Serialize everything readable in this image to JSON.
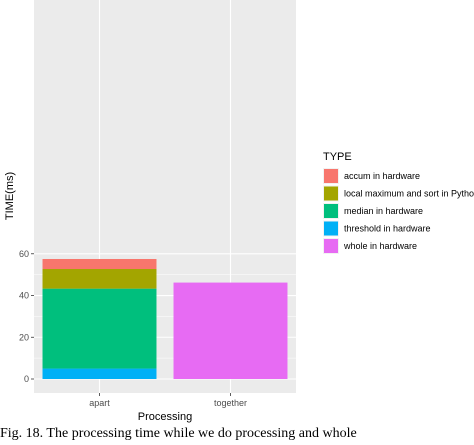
{
  "chart_data": {
    "type": "bar",
    "stacked": true,
    "xlabel": "Processing",
    "ylabel": "TIME(ms)",
    "categories": [
      "apart",
      "together"
    ],
    "ylim": [
      0,
      60
    ],
    "yticks": [
      0,
      20,
      40,
      60
    ],
    "legend": {
      "title": "TYPE",
      "placement": "right"
    },
    "series": [
      {
        "name": "threshold in hardware",
        "color": "#00B0F6",
        "values": [
          5.0,
          0
        ]
      },
      {
        "name": "median in hardware",
        "color": "#00BF7D",
        "values": [
          38.3,
          0
        ]
      },
      {
        "name": "local maximum and sort in Python",
        "color": "#A3A500",
        "values": [
          9.4,
          0
        ]
      },
      {
        "name": "accum in hardware",
        "color": "#F8766D",
        "values": [
          4.8,
          0
        ]
      },
      {
        "name": "whole in hardware",
        "color": "#E76BF3",
        "values": [
          0,
          46.2
        ]
      }
    ],
    "legend_order": [
      "accum in hardware",
      "local maximum and sort in Python",
      "median in hardware",
      "threshold in hardware",
      "whole in hardware"
    ],
    "grid": true,
    "panel_background": "#EBEBEB"
  },
  "caption": "Fig. 18. The processing time while we do processing and whole"
}
